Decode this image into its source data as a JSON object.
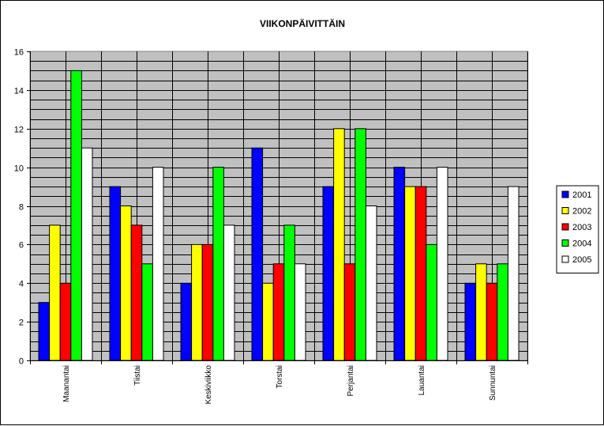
{
  "chart_data": {
    "type": "bar",
    "title": "VIIKONPÄIVITTÄIN",
    "xlabel": "",
    "ylabel": "",
    "categories": [
      "Maanantai",
      "Tiistai",
      "Keskiviikko",
      "Torstai",
      "Perjantai",
      "Lauantai",
      "Sunnuntai"
    ],
    "series": [
      {
        "name": "2001",
        "color": "#0000ff",
        "values": [
          3,
          9,
          4,
          11,
          9,
          10,
          4
        ]
      },
      {
        "name": "2002",
        "color": "#ffff00",
        "values": [
          7,
          8,
          6,
          4,
          12,
          9,
          5
        ]
      },
      {
        "name": "2003",
        "color": "#ff0000",
        "values": [
          4,
          7,
          6,
          5,
          5,
          9,
          4
        ]
      },
      {
        "name": "2004",
        "color": "#00ff00",
        "values": [
          15,
          5,
          10,
          7,
          12,
          6,
          5
        ]
      },
      {
        "name": "2005",
        "color": "#ffffff",
        "values": [
          11,
          10,
          7,
          5,
          8,
          10,
          9
        ]
      }
    ],
    "ylim": [
      0,
      16
    ],
    "yticks": [
      0,
      2,
      4,
      6,
      8,
      10,
      12,
      14,
      16
    ],
    "grid": true,
    "legend_position": "right",
    "plot_background": "#c0c0c0"
  }
}
